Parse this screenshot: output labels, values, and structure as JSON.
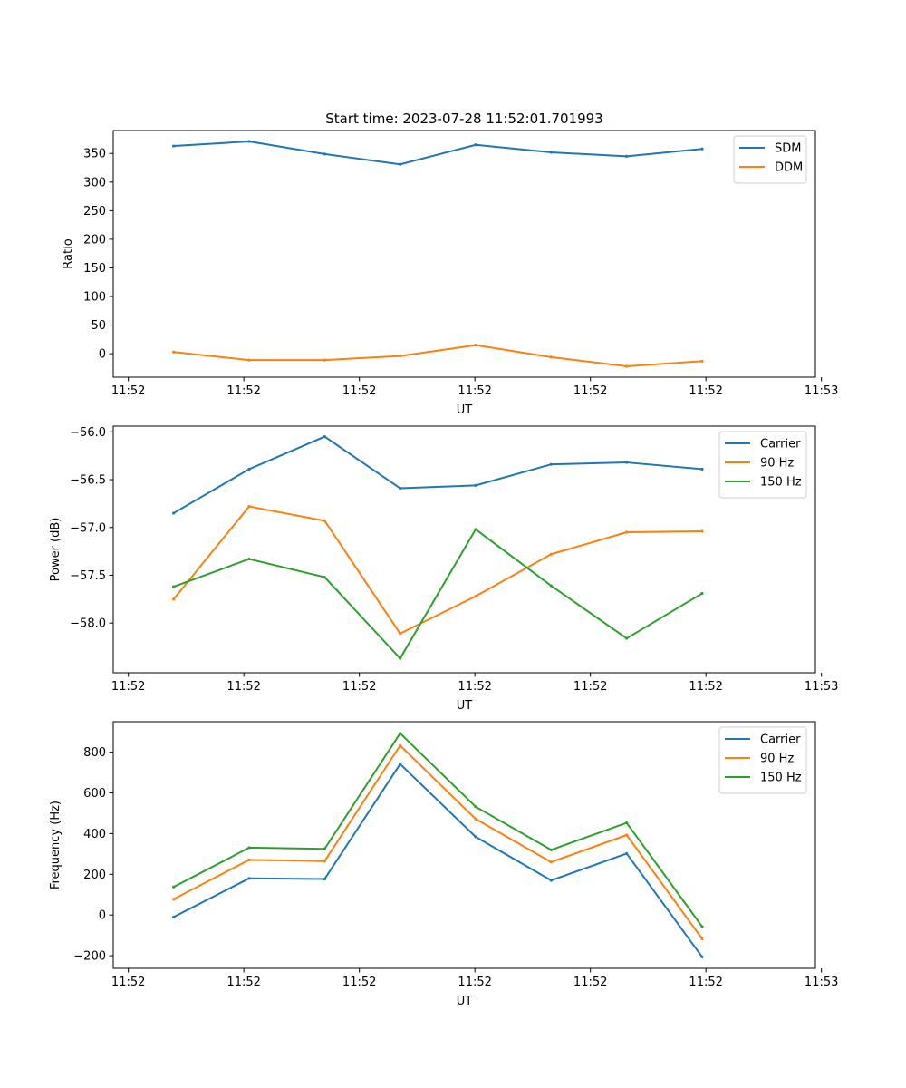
{
  "figure_title": "Start time: 2023-07-28 11:52:01.701993",
  "chart_data": [
    {
      "type": "line",
      "title": "Start time: 2023-07-28 11:52:01.701993",
      "xlabel": "UT",
      "ylabel": "Ratio",
      "x": [
        1,
        2,
        3,
        4,
        5,
        6,
        7,
        8
      ],
      "xlim": [
        0.2,
        9.5
      ],
      "xticks": [
        0.4,
        1.93,
        3.46,
        4.99,
        6.52,
        8.05,
        9.58
      ],
      "xtick_labels": [
        "11:52",
        "11:52",
        "11:52",
        "11:52",
        "11:52",
        "11:52",
        "11:53"
      ],
      "ylim": [
        -41,
        390
      ],
      "yticks": [
        0,
        50,
        100,
        150,
        200,
        250,
        300,
        350
      ],
      "ytick_labels": [
        "0",
        "50",
        "100",
        "150",
        "200",
        "250",
        "300",
        "350"
      ],
      "legend_position": "top-right",
      "series": [
        {
          "name": "SDM",
          "color": "#1f77b4",
          "values": [
            363,
            371,
            349,
            331,
            365,
            352,
            345,
            358
          ]
        },
        {
          "name": "DDM",
          "color": "#ff7f0e",
          "values": [
            3,
            -11,
            -11,
            -4,
            15,
            -6,
            -22,
            -13
          ]
        }
      ]
    },
    {
      "type": "line",
      "title": "",
      "xlabel": "UT",
      "ylabel": "Power (dB)",
      "x": [
        1,
        2,
        3,
        4,
        5,
        6,
        7,
        8
      ],
      "xlim": [
        0.2,
        9.5
      ],
      "xticks": [
        0.4,
        1.93,
        3.46,
        4.99,
        6.52,
        8.05,
        9.58
      ],
      "xtick_labels": [
        "11:52",
        "11:52",
        "11:52",
        "11:52",
        "11:52",
        "11:52",
        "11:53"
      ],
      "ylim": [
        -58.52,
        -55.94
      ],
      "yticks": [
        -58.0,
        -57.5,
        -57.0,
        -56.5,
        -56.0
      ],
      "ytick_labels": [
        "−58.0",
        "−57.5",
        "−57.0",
        "−56.5",
        "−56.0"
      ],
      "legend_position": "top-right",
      "series": [
        {
          "name": "Carrier",
          "color": "#1f77b4",
          "values": [
            -56.85,
            -56.39,
            -56.05,
            -56.59,
            -56.56,
            -56.34,
            -56.32,
            -56.39
          ]
        },
        {
          "name": "90 Hz",
          "color": "#ff7f0e",
          "values": [
            -57.75,
            -56.78,
            -56.93,
            -58.11,
            -57.72,
            -57.28,
            -57.05,
            -57.04
          ]
        },
        {
          "name": "150 Hz",
          "color": "#2ca02c",
          "values": [
            -57.62,
            -57.33,
            -57.52,
            -58.37,
            -57.02,
            -57.61,
            -58.16,
            -57.69
          ]
        }
      ]
    },
    {
      "type": "line",
      "title": "",
      "xlabel": "UT",
      "ylabel": "Frequency (Hz)",
      "x": [
        1,
        2,
        3,
        4,
        5,
        6,
        7,
        8
      ],
      "xlim": [
        0.2,
        9.5
      ],
      "xticks": [
        0.4,
        1.93,
        3.46,
        4.99,
        6.52,
        8.05,
        9.58
      ],
      "xtick_labels": [
        "11:52",
        "11:52",
        "11:52",
        "11:52",
        "11:52",
        "11:52",
        "11:53"
      ],
      "ylim": [
        -262,
        950
      ],
      "yticks": [
        -200,
        0,
        200,
        400,
        600,
        800
      ],
      "ytick_labels": [
        "−200",
        "0",
        "200",
        "400",
        "600",
        "800"
      ],
      "legend_position": "top-right",
      "series": [
        {
          "name": "Carrier",
          "color": "#1f77b4",
          "values": [
            -10,
            180,
            177,
            742,
            384,
            170,
            302,
            -206
          ]
        },
        {
          "name": "90 Hz",
          "color": "#ff7f0e",
          "values": [
            78,
            271,
            265,
            833,
            472,
            260,
            393,
            -117
          ]
        },
        {
          "name": "150 Hz",
          "color": "#2ca02c",
          "values": [
            138,
            331,
            325,
            893,
            532,
            320,
            453,
            -57
          ]
        }
      ]
    }
  ]
}
